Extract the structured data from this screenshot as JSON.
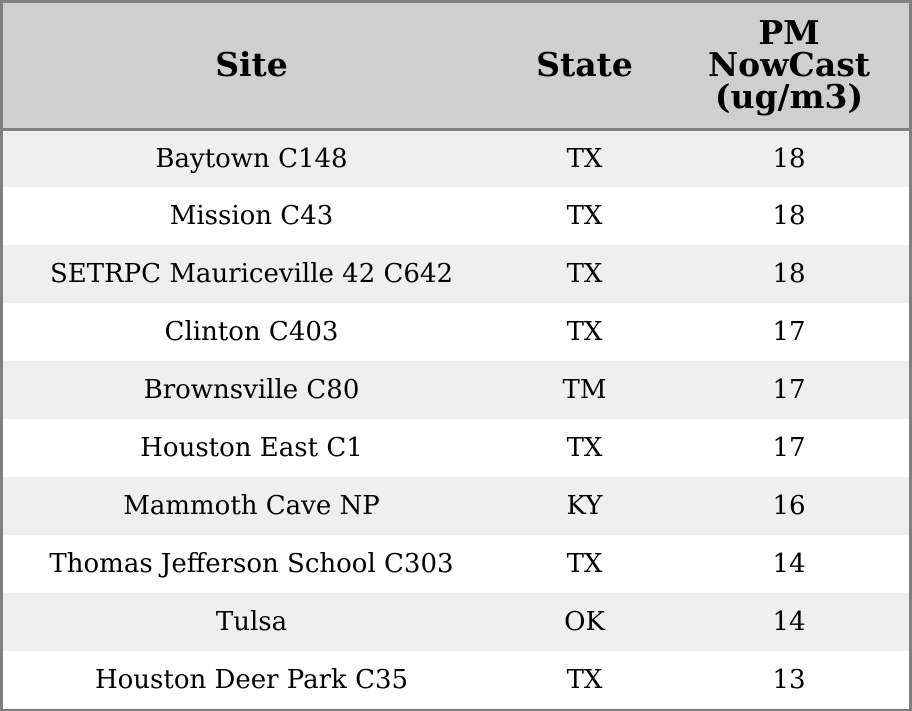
{
  "chart_data": {
    "type": "table",
    "columns": [
      "Site",
      "State",
      "PM NowCast (ug/m3)"
    ],
    "header_lines": [
      [
        "Site"
      ],
      [
        "State"
      ],
      [
        "PM",
        "NowCast",
        "(ug/m3)"
      ]
    ],
    "rows": [
      {
        "site": "Baytown C148",
        "state": "TX",
        "pm": "18"
      },
      {
        "site": "Mission C43",
        "state": "TX",
        "pm": "18"
      },
      {
        "site": "SETRPC Mauriceville 42 C642",
        "state": "TX",
        "pm": "18"
      },
      {
        "site": "Clinton C403",
        "state": "TX",
        "pm": "17"
      },
      {
        "site": "Brownsville C80",
        "state": "TM",
        "pm": "17"
      },
      {
        "site": "Houston East C1",
        "state": "TX",
        "pm": "17"
      },
      {
        "site": "Mammoth Cave NP",
        "state": "KY",
        "pm": "16"
      },
      {
        "site": "Thomas Jefferson School C303",
        "state": "TX",
        "pm": "14"
      },
      {
        "site": "Tulsa",
        "state": "OK",
        "pm": "14"
      },
      {
        "site": "Houston Deer Park C35",
        "state": "TX",
        "pm": "13"
      }
    ],
    "colors": {
      "header_bg": "#cfcfcf",
      "row_alt_bg": "#efefef",
      "row_bg": "#ffffff",
      "border": "#808080"
    }
  }
}
